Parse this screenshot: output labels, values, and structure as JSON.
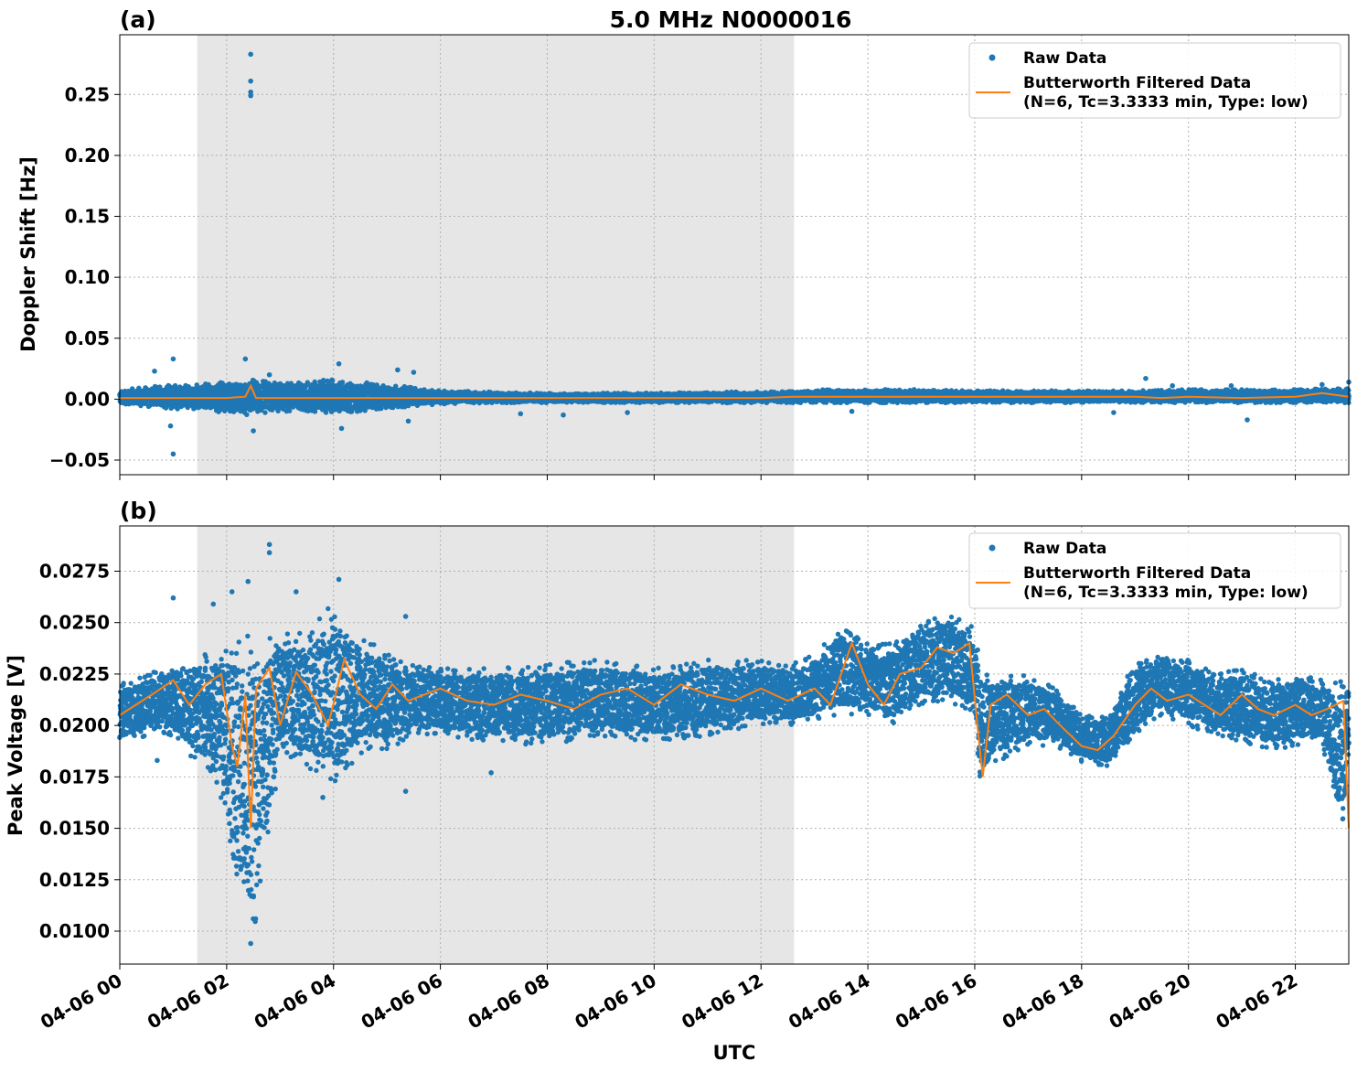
{
  "title": "5.0 MHz N0000016",
  "xlabel": "UTC",
  "x_ticks": [
    "04-06 00",
    "04-06 02",
    "04-06 04",
    "04-06 06",
    "04-06 08",
    "04-06 10",
    "04-06 12",
    "04-06 14",
    "04-06 16",
    "04-06 18",
    "04-06 20",
    "04-06 22"
  ],
  "colors": {
    "raw": "#1f77b4",
    "filtered": "#ff7f0e",
    "shade": "#e6e6e6"
  },
  "chart_data": [
    {
      "type": "scatter",
      "panel_label": "(a)",
      "ylabel": "Doppler Shift [Hz]",
      "xlim_hours": [
        0,
        23.0
      ],
      "ylim": [
        -0.062,
        0.299
      ],
      "yticks": [
        -0.05,
        0.0,
        0.05,
        0.1,
        0.15,
        0.2,
        0.25
      ],
      "ytick_labels": [
        "−0.05",
        "0.00",
        "0.05",
        "0.10",
        "0.15",
        "0.20",
        "0.25"
      ],
      "shaded_span_hours": [
        1.45,
        12.62
      ],
      "grid": true,
      "legend": {
        "placement": "top-right",
        "raw_label": "Raw Data",
        "filtered_label_line1": "Butterworth Filtered Data",
        "filtered_label_line2": "(N=6, Tc=3.3333 min, Type: low)"
      },
      "series": [
        {
          "name": "Raw Data",
          "kind": "scatter-band",
          "x_hours": [
            0,
            0.5,
            1,
            1.5,
            2,
            2.5,
            3,
            3.5,
            4,
            4.5,
            5,
            5.5,
            6,
            7,
            8,
            9,
            10,
            11,
            12,
            12.6,
            13,
            14,
            15,
            16,
            17,
            18,
            19,
            20,
            21,
            22,
            23
          ],
          "upper": [
            0.008,
            0.01,
            0.012,
            0.012,
            0.015,
            0.016,
            0.014,
            0.015,
            0.016,
            0.014,
            0.012,
            0.01,
            0.007,
            0.006,
            0.005,
            0.005,
            0.005,
            0.006,
            0.006,
            0.007,
            0.008,
            0.008,
            0.008,
            0.007,
            0.007,
            0.007,
            0.007,
            0.008,
            0.008,
            0.008,
            0.009
          ],
          "lower": [
            -0.005,
            -0.006,
            -0.008,
            -0.009,
            -0.012,
            -0.013,
            -0.01,
            -0.011,
            -0.013,
            -0.01,
            -0.008,
            -0.006,
            -0.004,
            -0.003,
            -0.003,
            -0.003,
            -0.003,
            -0.003,
            -0.003,
            -0.003,
            -0.003,
            -0.003,
            -0.003,
            -0.003,
            -0.003,
            -0.003,
            -0.003,
            -0.003,
            -0.003,
            -0.003,
            -0.003
          ],
          "outliers": [
            {
              "x": 2.45,
              "y": 0.283
            },
            {
              "x": 2.45,
              "y": 0.261
            },
            {
              "x": 2.45,
              "y": 0.252
            },
            {
              "x": 2.45,
              "y": 0.249
            },
            {
              "x": 1.0,
              "y": -0.045
            },
            {
              "x": 1.0,
              "y": 0.033
            },
            {
              "x": 0.65,
              "y": 0.023
            },
            {
              "x": 2.35,
              "y": 0.033
            },
            {
              "x": 2.8,
              "y": 0.02
            },
            {
              "x": 4.1,
              "y": 0.029
            },
            {
              "x": 5.2,
              "y": 0.024
            },
            {
              "x": 5.5,
              "y": 0.022
            },
            {
              "x": 0.95,
              "y": -0.022
            },
            {
              "x": 2.5,
              "y": -0.026
            },
            {
              "x": 4.15,
              "y": -0.024
            },
            {
              "x": 5.4,
              "y": -0.018
            },
            {
              "x": 19.2,
              "y": 0.017
            },
            {
              "x": 19.7,
              "y": 0.011
            },
            {
              "x": 20.8,
              "y": 0.011
            },
            {
              "x": 22.5,
              "y": 0.012
            },
            {
              "x": 23.0,
              "y": 0.014
            },
            {
              "x": 21.1,
              "y": -0.017
            },
            {
              "x": 18.6,
              "y": -0.011
            },
            {
              "x": 13.7,
              "y": -0.01
            },
            {
              "x": 8.3,
              "y": -0.013
            },
            {
              "x": 7.5,
              "y": -0.012
            },
            {
              "x": 9.5,
              "y": -0.011
            }
          ]
        },
        {
          "name": "Butterworth Filtered Data",
          "kind": "line",
          "x_hours": [
            0,
            1,
            2,
            2.35,
            2.45,
            2.55,
            3,
            4,
            5,
            6,
            7,
            8,
            9,
            10,
            11,
            12,
            12.6,
            13,
            14,
            15,
            16,
            17,
            18,
            19,
            19.5,
            20,
            21,
            22,
            22.5,
            23
          ],
          "y": [
            0.001,
            0.001,
            0.001,
            0.002,
            0.011,
            0.001,
            0.001,
            0.001,
            0.001,
            0.001,
            0.001,
            0.001,
            0.001,
            0.001,
            0.001,
            0.001,
            0.002,
            0.002,
            0.002,
            0.002,
            0.002,
            0.002,
            0.002,
            0.002,
            0.001,
            0.002,
            0.001,
            0.002,
            0.005,
            0.002
          ]
        }
      ]
    },
    {
      "type": "scatter",
      "panel_label": "(b)",
      "ylabel": "Peak Voltage [V]",
      "xlim_hours": [
        0,
        23.0
      ],
      "ylim": [
        0.0084,
        0.0297
      ],
      "yticks": [
        0.01,
        0.0125,
        0.015,
        0.0175,
        0.02,
        0.0225,
        0.025,
        0.0275
      ],
      "ytick_labels": [
        "0.0100",
        "0.0125",
        "0.0150",
        "0.0175",
        "0.0200",
        "0.0225",
        "0.0250",
        "0.0275"
      ],
      "shaded_span_hours": [
        1.45,
        12.62
      ],
      "grid": true,
      "legend": {
        "placement": "top-right",
        "raw_label": "Raw Data",
        "filtered_label_line1": "Butterworth Filtered Data",
        "filtered_label_line2": "(N=6, Tc=3.3333 min, Type: low)"
      },
      "series": [
        {
          "name": "Raw Data",
          "kind": "scatter-band",
          "x_hours": [
            0,
            0.5,
            1,
            1.5,
            2,
            2.2,
            2.4,
            2.5,
            3,
            3.5,
            4,
            4.5,
            5,
            5.5,
            6,
            7,
            8,
            9,
            10,
            11,
            12,
            12.6,
            13,
            13.5,
            14,
            14.5,
            15,
            15.5,
            16,
            16.1,
            16.3,
            17,
            17.5,
            18,
            18.5,
            19,
            19.5,
            20,
            20.5,
            21,
            21.5,
            22,
            22.5,
            22.9,
            23
          ],
          "upper": [
            0.022,
            0.0225,
            0.023,
            0.0235,
            0.024,
            0.0245,
            0.0245,
            0.024,
            0.0245,
            0.0245,
            0.026,
            0.0245,
            0.0235,
            0.023,
            0.0228,
            0.0228,
            0.023,
            0.0232,
            0.0228,
            0.0232,
            0.0232,
            0.023,
            0.0235,
            0.0248,
            0.024,
            0.024,
            0.0252,
            0.0254,
            0.0248,
            0.023,
            0.0225,
            0.0225,
            0.0218,
            0.0205,
            0.0205,
            0.0232,
            0.0235,
            0.0232,
            0.0225,
            0.0228,
            0.0222,
            0.0225,
            0.0222,
            0.0222,
            0.0225
          ],
          "lower": [
            0.019,
            0.0195,
            0.0195,
            0.018,
            0.016,
            0.011,
            0.01,
            0.0095,
            0.0185,
            0.018,
            0.017,
            0.0185,
            0.0188,
            0.0195,
            0.0195,
            0.0192,
            0.019,
            0.0195,
            0.0192,
            0.0195,
            0.02,
            0.02,
            0.0202,
            0.0205,
            0.0205,
            0.02,
            0.021,
            0.0212,
            0.0205,
            0.0165,
            0.018,
            0.019,
            0.019,
            0.0182,
            0.018,
            0.0195,
            0.0205,
            0.02,
            0.0195,
            0.0192,
            0.0188,
            0.019,
            0.0192,
            0.014,
            0.019
          ],
          "outliers": [
            {
              "x": 2.8,
              "y": 0.0288
            },
            {
              "x": 2.8,
              "y": 0.0284
            },
            {
              "x": 4.1,
              "y": 0.0271
            },
            {
              "x": 1.0,
              "y": 0.0262
            },
            {
              "x": 1.75,
              "y": 0.0259
            },
            {
              "x": 2.4,
              "y": 0.027
            },
            {
              "x": 2.1,
              "y": 0.0265
            },
            {
              "x": 3.3,
              "y": 0.0265
            },
            {
              "x": 5.35,
              "y": 0.0253
            },
            {
              "x": 1.7,
              "y": 0.0178
            },
            {
              "x": 5.35,
              "y": 0.0168
            },
            {
              "x": 6.95,
              "y": 0.0177
            },
            {
              "x": 3.8,
              "y": 0.0165
            },
            {
              "x": 0.7,
              "y": 0.0183
            },
            {
              "x": 2.45,
              "y": 0.0094
            }
          ]
        },
        {
          "name": "Butterworth Filtered Data",
          "kind": "line",
          "x_hours": [
            0,
            0.3,
            0.6,
            1,
            1.3,
            1.6,
            1.9,
            2.1,
            2.2,
            2.35,
            2.45,
            2.55,
            2.8,
            3.0,
            3.3,
            3.6,
            3.9,
            4.2,
            4.5,
            4.8,
            5.1,
            5.4,
            5.7,
            6.0,
            6.5,
            7,
            7.5,
            8,
            8.5,
            9,
            9.5,
            10,
            10.5,
            11,
            11.5,
            12,
            12.5,
            13,
            13.3,
            13.7,
            14,
            14.3,
            14.6,
            15,
            15.3,
            15.6,
            15.9,
            16.05,
            16.15,
            16.3,
            16.6,
            17,
            17.3,
            17.6,
            18,
            18.3,
            18.6,
            19,
            19.3,
            19.6,
            20,
            20.3,
            20.6,
            21,
            21.3,
            21.6,
            22,
            22.3,
            22.6,
            22.9,
            23
          ],
          "y": [
            0.0205,
            0.021,
            0.0215,
            0.0222,
            0.021,
            0.022,
            0.0225,
            0.019,
            0.018,
            0.0215,
            0.015,
            0.0218,
            0.0228,
            0.02,
            0.0226,
            0.0215,
            0.02,
            0.0232,
            0.0215,
            0.0208,
            0.022,
            0.0212,
            0.0215,
            0.0218,
            0.0212,
            0.021,
            0.0215,
            0.0212,
            0.0208,
            0.0215,
            0.0218,
            0.021,
            0.022,
            0.0215,
            0.0212,
            0.0218,
            0.0212,
            0.0218,
            0.021,
            0.024,
            0.022,
            0.021,
            0.0225,
            0.0228,
            0.0238,
            0.0235,
            0.024,
            0.02,
            0.0175,
            0.021,
            0.0215,
            0.0205,
            0.0208,
            0.02,
            0.019,
            0.0188,
            0.0195,
            0.021,
            0.0218,
            0.0212,
            0.0215,
            0.021,
            0.0205,
            0.0215,
            0.0208,
            0.0205,
            0.021,
            0.0205,
            0.0208,
            0.0212,
            0.015
          ]
        }
      ]
    }
  ]
}
